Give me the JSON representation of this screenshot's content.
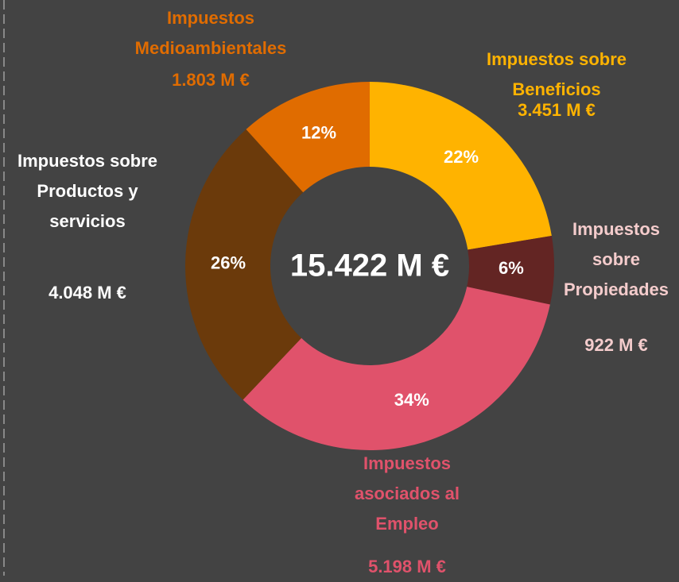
{
  "chart_data": {
    "type": "donut",
    "categories": [
      "Impuestos sobre Beneficios",
      "Impuestos sobre Propiedades",
      "Impuestos asociados al Empleo",
      "Impuestos sobre Productos y servicios",
      "Impuestos Medioambientales"
    ],
    "values": [
      3451,
      922,
      5198,
      4048,
      1803
    ],
    "value_labels": [
      "3.451 M €",
      "922 M €",
      "5.198 M €",
      "4.048 M €",
      "1.803 M €"
    ],
    "percent_labels": [
      "22%",
      "6%",
      "34%",
      "26%",
      "12%"
    ],
    "colors": [
      "#ffb300",
      "#632523",
      "#e0526b",
      "#6b3a0b",
      "#e06c00"
    ],
    "label_colors": [
      "#ffb300",
      "#f4cccc",
      "#e0526b",
      "#ffffff",
      "#e06c00"
    ],
    "center_label": "15.422 M €"
  }
}
